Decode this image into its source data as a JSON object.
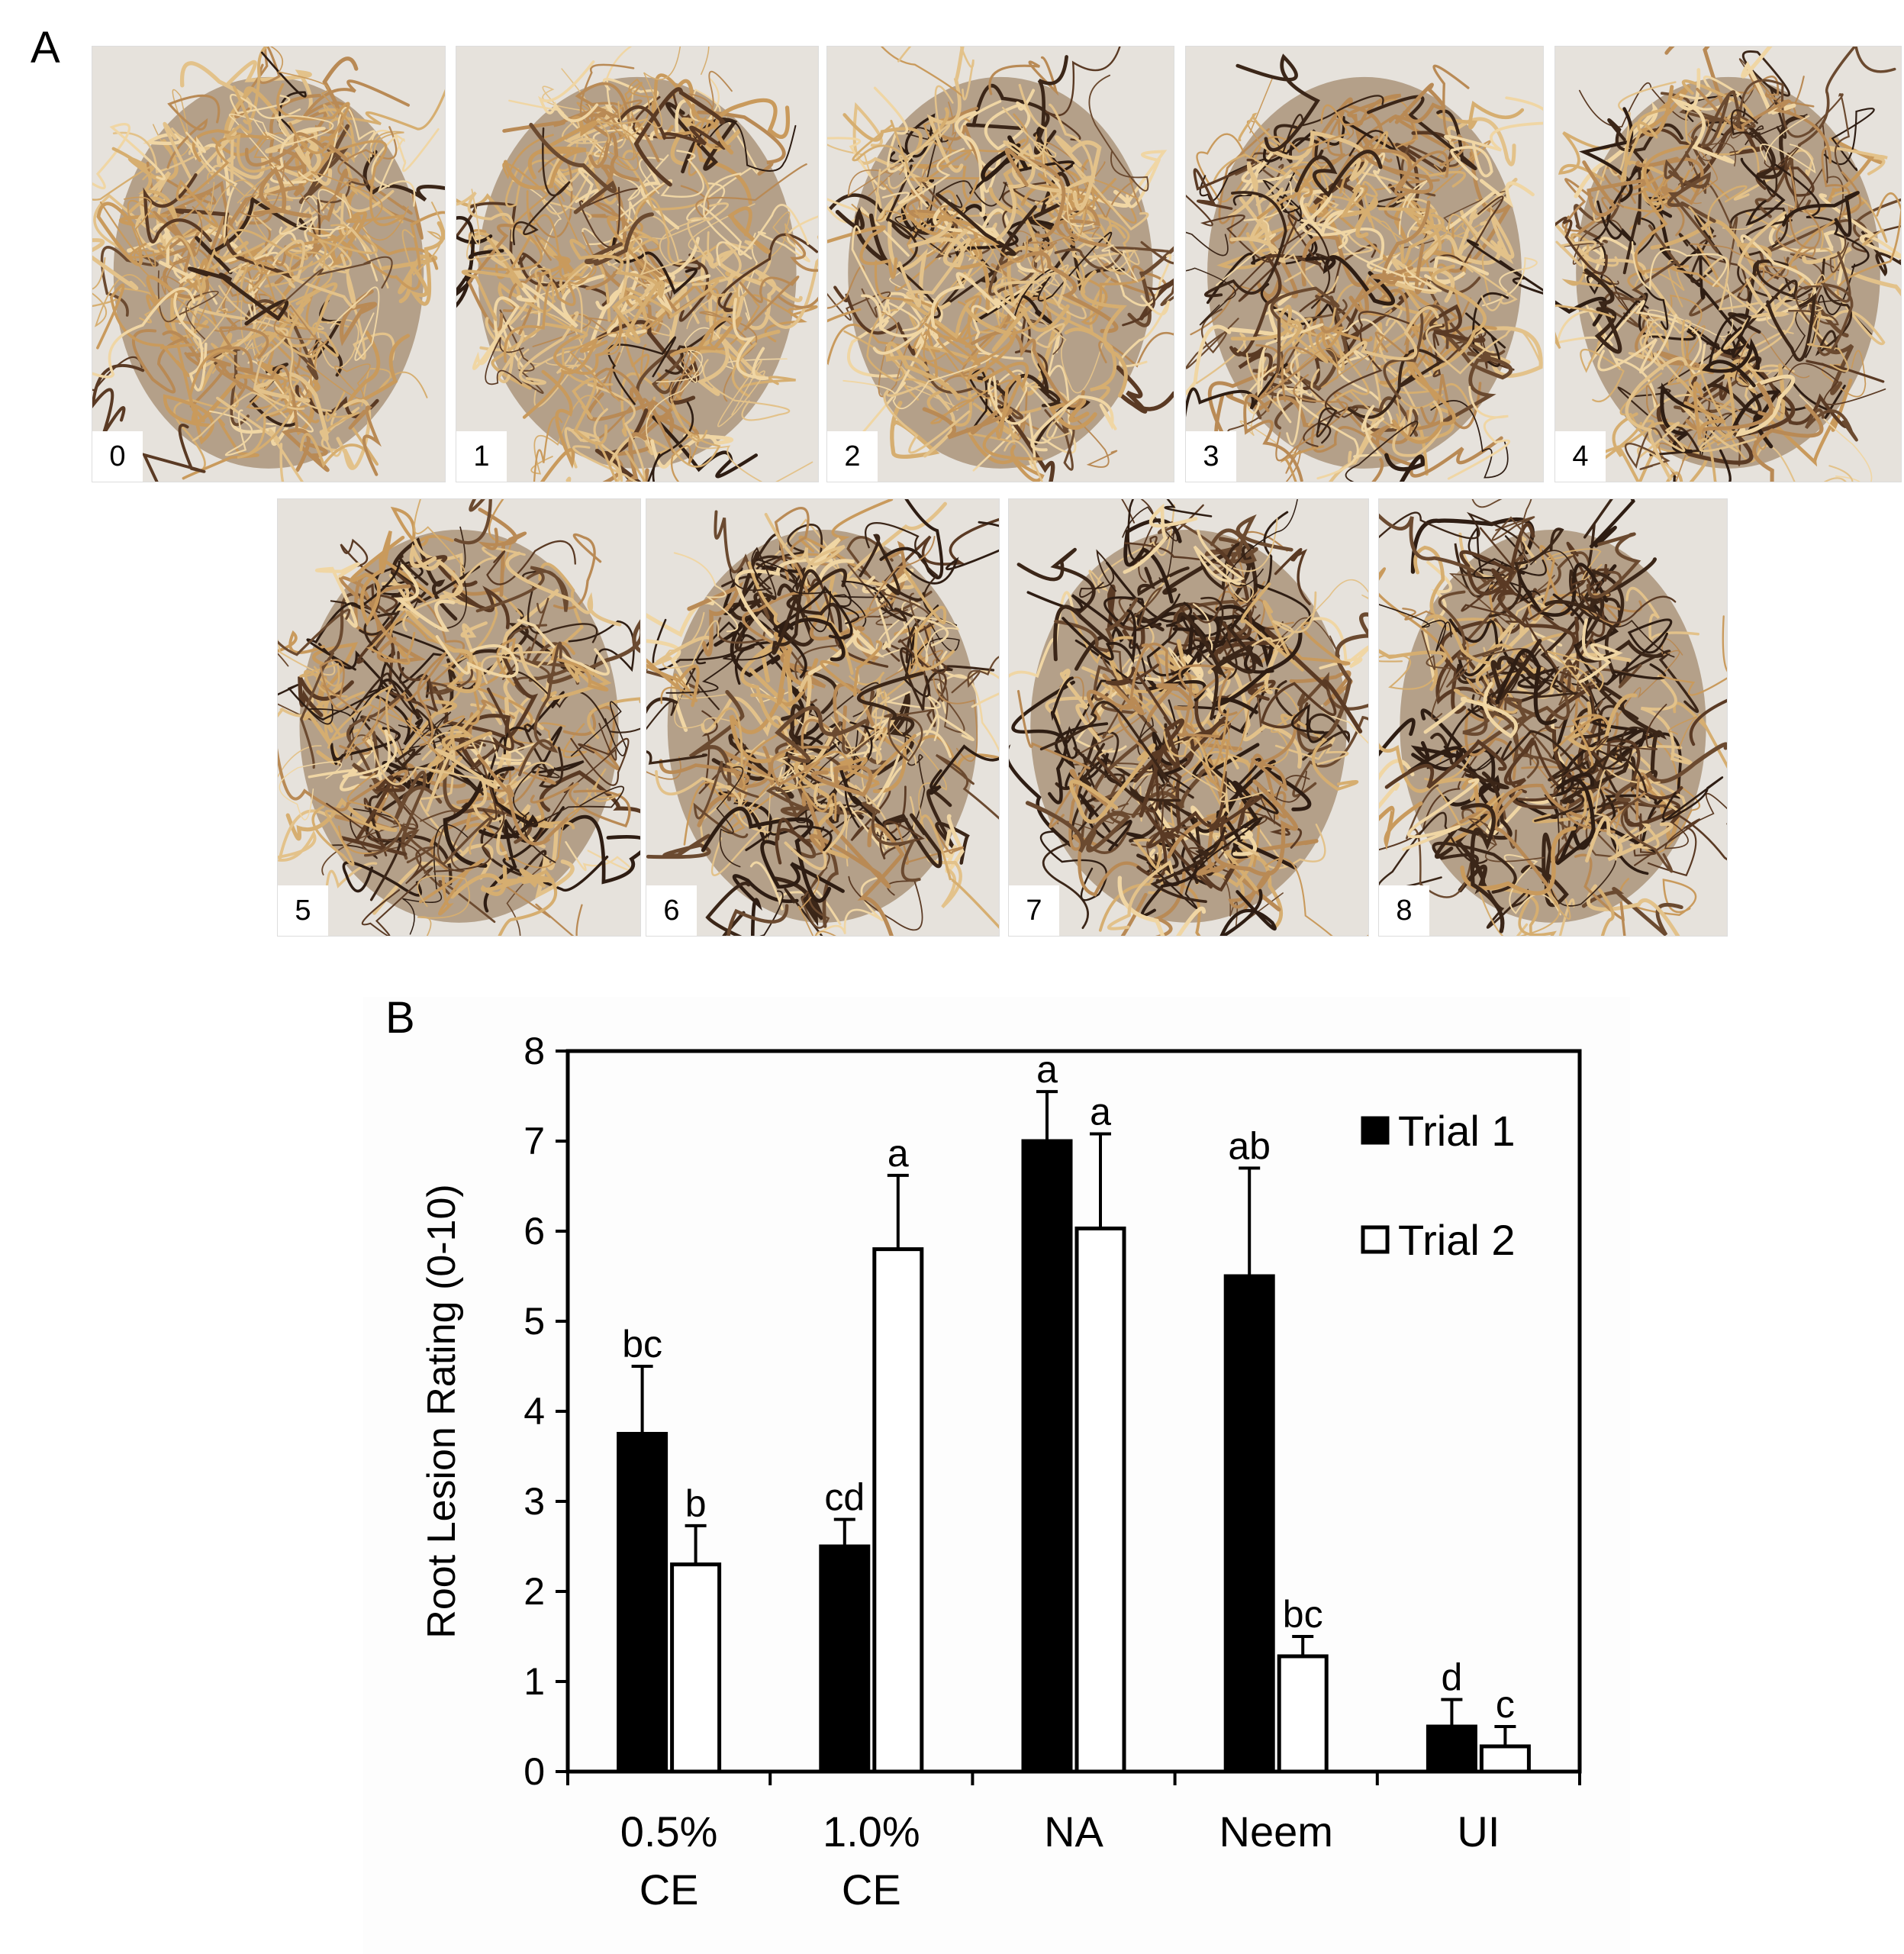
{
  "panel_a": {
    "letter": "A",
    "photos": [
      {
        "label": "0"
      },
      {
        "label": "1"
      },
      {
        "label": "2"
      },
      {
        "label": "3"
      },
      {
        "label": "4"
      },
      {
        "label": "5"
      },
      {
        "label": "6"
      },
      {
        "label": "7"
      },
      {
        "label": "8"
      }
    ]
  },
  "panel_b": {
    "letter": "B"
  },
  "colors": {
    "trial1": "#000000",
    "trial2": "#ffffff",
    "root_light": "#d9b47c",
    "root_dark": "#4a3020",
    "paper": "#e6e2dc"
  },
  "chart_data": {
    "type": "bar",
    "categories": [
      "0.5%\nCE",
      "1.0%\nCE",
      "NA",
      "Neem",
      "UI"
    ],
    "series": [
      {
        "name": "Trial 1",
        "values": [
          3.75,
          2.5,
          7.0,
          5.5,
          0.5
        ],
        "errors": [
          0.75,
          0.3,
          0.55,
          1.2,
          0.3
        ],
        "letters": [
          "bc",
          "cd",
          "a",
          "ab",
          "d"
        ]
      },
      {
        "name": "Trial 2",
        "values": [
          2.3,
          5.8,
          6.03,
          1.28,
          0.28
        ],
        "errors": [
          0.43,
          0.82,
          1.05,
          0.22,
          0.22
        ],
        "letters": [
          "b",
          "a",
          "a",
          "bc",
          "c"
        ]
      }
    ],
    "ylabel": "Root Lesion Rating (0-10)",
    "xlabel": "",
    "ylim": [
      0,
      8
    ],
    "yticks": [
      0,
      1,
      2,
      3,
      4,
      5,
      6,
      7,
      8
    ],
    "legend": "top-right",
    "grid": false
  }
}
